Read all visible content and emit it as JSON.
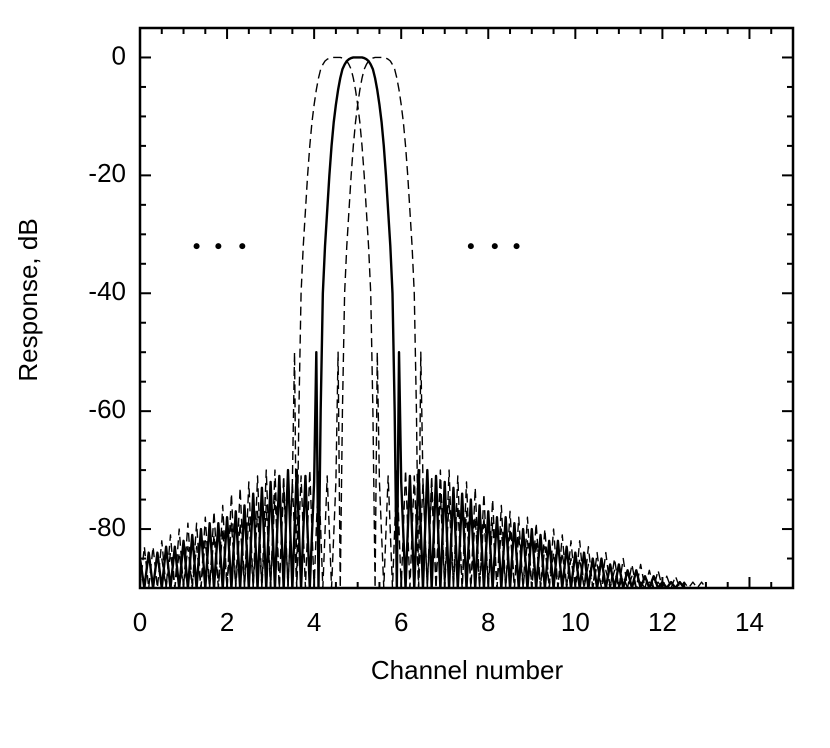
{
  "chart_data": {
    "type": "line",
    "x_label": "Channel number",
    "y_label": "Response, dB",
    "xlim": [
      0,
      15
    ],
    "ylim": [
      -90,
      5
    ],
    "xticks": [
      0,
      2,
      4,
      6,
      8,
      10,
      12,
      14
    ],
    "yticks": [
      0,
      -20,
      -40,
      -60,
      -80
    ],
    "xminorticks": [
      0.5,
      1,
      1.5,
      2.5,
      3,
      3.5,
      4.5,
      5,
      5.5,
      6.5,
      7,
      7.5,
      8.5,
      9,
      9.5,
      10.5,
      11,
      11.5,
      12.5,
      13,
      13.5,
      14.5
    ],
    "yminorticks": [
      5,
      -5,
      -10,
      -15,
      -25,
      -30,
      -35,
      -45,
      -50,
      -55,
      -65,
      -70,
      -75,
      -85
    ],
    "dots": {
      "x": [
        1.3,
        1.8,
        2.35,
        7.6,
        8.15,
        8.65
      ],
      "y": [
        -32,
        -32,
        -32,
        -32,
        -32,
        -32
      ]
    },
    "series": [
      {
        "color": "#000000",
        "style": "solid",
        "x": [
          0,
          0.1,
          0.2,
          0.3,
          0.4,
          0.5,
          0.6,
          0.7,
          0.8,
          0.9,
          1,
          1.1,
          1.2,
          1.3,
          1.4,
          1.5,
          1.6,
          1.7,
          1.8,
          1.9,
          2,
          2.1,
          2.2,
          2.3,
          2.4,
          2.5,
          2.6,
          2.7,
          2.8,
          2.9,
          3,
          3.1,
          3.2,
          3.3,
          3.4,
          3.5,
          3.6,
          3.7,
          3.8,
          3.9,
          4,
          4.05,
          4.1,
          4.15,
          4.2,
          4.25,
          4.3,
          4.35,
          4.4,
          4.45,
          4.5,
          4.55,
          4.6,
          4.65,
          4.7,
          4.75,
          4.8,
          4.85,
          4.9,
          4.95,
          5,
          5.05,
          5.1,
          5.15,
          5.2,
          5.25,
          5.3,
          5.35,
          5.4,
          5.45,
          5.5,
          5.55,
          5.6,
          5.65,
          5.7,
          5.75,
          5.8,
          5.85,
          5.9,
          5.95,
          6,
          6.1,
          6.2,
          6.3,
          6.4,
          6.5,
          6.6,
          6.7,
          6.8,
          6.9,
          7,
          7.1,
          7.2,
          7.3,
          7.4,
          7.5,
          7.6,
          7.7,
          7.8,
          7.9,
          8,
          8.1,
          8.2,
          8.3,
          8.4,
          8.5,
          8.6,
          8.7,
          8.8,
          8.9,
          9,
          9.1,
          9.2,
          9.3,
          9.4,
          9.5,
          9.6,
          9.7,
          9.8,
          9.9,
          10,
          10.1,
          10.2,
          10.3,
          10.4,
          10.5,
          10.6,
          10.7,
          10.8,
          10.9,
          11,
          11.1,
          11.2,
          11.3,
          11.4,
          11.5,
          11.6,
          11.7,
          11.8,
          11.9,
          12,
          12.1,
          12.2,
          12.3,
          12.4,
          12.5,
          12.6
        ],
        "values": [
          -85,
          -90,
          -84,
          -90,
          -84,
          -90,
          -83,
          -90,
          -83,
          -90,
          -82,
          -90,
          -81,
          -90,
          -80,
          -90,
          -79,
          -90,
          -79,
          -90,
          -78,
          -90,
          -77,
          -90,
          -76,
          -90,
          -74,
          -90,
          -73,
          -90,
          -72,
          -90,
          -71,
          -90,
          -70,
          -90,
          -70,
          -90,
          -71,
          -90,
          -72,
          -50,
          -90,
          -60,
          -40,
          -32,
          -26,
          -20,
          -15,
          -11,
          -8,
          -5.5,
          -3.5,
          -2,
          -1.2,
          -0.6,
          -0.3,
          -0.1,
          0,
          0,
          0,
          0,
          0,
          -0.1,
          -0.3,
          -0.6,
          -1.2,
          -2,
          -3.5,
          -5.5,
          -8,
          -11,
          -15,
          -20,
          -26,
          -32,
          -40,
          -60,
          -90,
          -50,
          -72,
          -90,
          -71,
          -90,
          -70,
          -90,
          -70,
          -90,
          -71,
          -90,
          -72,
          -90,
          -73,
          -90,
          -74,
          -90,
          -75,
          -90,
          -76,
          -90,
          -77,
          -90,
          -78,
          -90,
          -78,
          -90,
          -79,
          -90,
          -80,
          -90,
          -80,
          -90,
          -81,
          -90,
          -82,
          -90,
          -82,
          -90,
          -83,
          -90,
          -84,
          -90,
          -84,
          -90,
          -85,
          -90,
          -85,
          -90,
          -86,
          -90,
          -86,
          -90,
          -87,
          -90,
          -87,
          -90,
          -88,
          -90,
          -88,
          -90,
          -89,
          -90,
          -89,
          -90,
          -89,
          -90,
          -90
        ]
      },
      {
        "color": "#000000",
        "style": "dashed",
        "x": [
          0,
          0.1,
          0.2,
          0.3,
          0.4,
          0.5,
          0.6,
          0.7,
          0.8,
          0.9,
          1,
          1.1,
          1.2,
          1.3,
          1.4,
          1.5,
          1.6,
          1.7,
          1.8,
          1.9,
          2,
          2.1,
          2.2,
          2.3,
          2.4,
          2.5,
          2.6,
          2.7,
          2.8,
          2.9,
          3,
          3.1,
          3.2,
          3.3,
          3.4,
          3.5,
          3.55,
          3.6,
          3.65,
          3.7,
          3.75,
          3.8,
          3.85,
          3.9,
          3.95,
          4,
          4.05,
          4.1,
          4.15,
          4.2,
          4.25,
          4.3,
          4.35,
          4.4,
          4.45,
          4.5,
          4.55,
          4.6,
          4.65,
          4.7,
          4.75,
          4.8,
          4.85,
          4.9,
          4.95,
          5,
          5.05,
          5.1,
          5.15,
          5.2,
          5.25,
          5.3,
          5.35,
          5.4,
          5.45,
          5.5,
          5.6,
          5.7,
          5.8,
          5.9,
          6,
          6.1,
          6.2,
          6.3,
          6.4,
          6.5,
          6.6,
          6.7,
          6.8,
          6.9,
          7,
          7.1,
          7.2,
          7.3,
          7.4,
          7.5,
          7.6,
          7.7,
          7.8,
          7.9,
          8,
          8.1,
          8.2,
          8.3,
          8.4,
          8.5,
          8.6,
          8.7,
          8.8,
          8.9,
          9,
          9.1,
          9.2,
          9.3,
          9.4,
          9.5,
          9.6,
          9.7,
          9.8,
          9.9,
          10,
          10.1,
          10.2,
          10.3,
          10.4,
          10.5,
          10.6,
          10.7,
          10.8,
          10.9,
          11,
          11.1,
          11.2,
          11.3,
          11.4,
          11.5,
          11.6,
          11.7,
          11.8,
          11.9,
          12,
          12.1
        ],
        "values": [
          -90,
          -83,
          -90,
          -83,
          -90,
          -82,
          -90,
          -81,
          -90,
          -80,
          -90,
          -79,
          -90,
          -79,
          -90,
          -78,
          -90,
          -77,
          -90,
          -76,
          -90,
          -74,
          -90,
          -73,
          -90,
          -72,
          -90,
          -71,
          -90,
          -70,
          -90,
          -70,
          -90,
          -71,
          -90,
          -72,
          -50,
          -90,
          -60,
          -40,
          -32,
          -26,
          -20,
          -15,
          -11,
          -8,
          -5.5,
          -3.5,
          -2,
          -1.2,
          -0.6,
          -0.3,
          -0.1,
          0,
          0,
          0,
          0,
          0,
          -0.1,
          -0.3,
          -0.6,
          -1.2,
          -2,
          -3.5,
          -5.5,
          -8,
          -11,
          -15,
          -20,
          -26,
          -32,
          -40,
          -60,
          -90,
          -50,
          -72,
          -90,
          -71,
          -90,
          -70,
          -90,
          -70,
          -90,
          -71,
          -90,
          -72,
          -90,
          -73,
          -90,
          -74,
          -90,
          -75,
          -90,
          -76,
          -90,
          -77,
          -90,
          -78,
          -90,
          -78,
          -90,
          -79,
          -90,
          -80,
          -90,
          -80,
          -90,
          -81,
          -90,
          -82,
          -90,
          -82,
          -90,
          -83,
          -90,
          -84,
          -90,
          -84,
          -90,
          -85,
          -90,
          -85,
          -90,
          -86,
          -90,
          -86,
          -90,
          -87,
          -90,
          -87,
          -90,
          -88,
          -90,
          -88,
          -90,
          -89,
          -90,
          -89,
          -90,
          -89,
          -90,
          -90
        ]
      },
      {
        "color": "#000000",
        "style": "dashed",
        "x": [
          0.5,
          0.6,
          0.7,
          0.8,
          0.9,
          1,
          1.1,
          1.2,
          1.3,
          1.4,
          1.5,
          1.6,
          1.7,
          1.8,
          1.9,
          2,
          2.1,
          2.2,
          2.3,
          2.4,
          2.5,
          2.6,
          2.7,
          2.8,
          2.9,
          3,
          3.1,
          3.2,
          3.3,
          3.4,
          3.5,
          3.6,
          3.7,
          3.8,
          3.9,
          4,
          4.1,
          4.2,
          4.3,
          4.4,
          4.5,
          4.55,
          4.6,
          4.65,
          4.7,
          4.75,
          4.8,
          4.85,
          4.9,
          4.95,
          5,
          5.05,
          5.1,
          5.15,
          5.2,
          5.25,
          5.3,
          5.35,
          5.4,
          5.45,
          5.5,
          5.55,
          5.6,
          5.65,
          5.7,
          5.75,
          5.8,
          5.85,
          5.9,
          5.95,
          6,
          6.05,
          6.1,
          6.15,
          6.2,
          6.25,
          6.3,
          6.35,
          6.4,
          6.45,
          6.5,
          6.6,
          6.7,
          6.8,
          6.9,
          7,
          7.1,
          7.2,
          7.3,
          7.4,
          7.5,
          7.6,
          7.7,
          7.8,
          7.9,
          8,
          8.1,
          8.2,
          8.3,
          8.4,
          8.5,
          8.6,
          8.7,
          8.8,
          8.9,
          9,
          9.1,
          9.2,
          9.3,
          9.4,
          9.5,
          9.6,
          9.7,
          9.8,
          9.9,
          10,
          10.1,
          10.2,
          10.3,
          10.4,
          10.5,
          10.6,
          10.7,
          10.8,
          10.9,
          11,
          11.1,
          11.2,
          11.3,
          11.4,
          11.5,
          11.6,
          11.7,
          11.8,
          11.9,
          12,
          12.1,
          12.2,
          12.3,
          12.4,
          12.5,
          12.6,
          12.7,
          12.8,
          12.9,
          13,
          13.1
        ],
        "values": [
          -85,
          -90,
          -84,
          -90,
          -84,
          -90,
          -83,
          -90,
          -83,
          -90,
          -82,
          -90,
          -81,
          -90,
          -80,
          -90,
          -79,
          -90,
          -79,
          -90,
          -78,
          -90,
          -77,
          -90,
          -76,
          -90,
          -74,
          -90,
          -73,
          -90,
          -72,
          -90,
          -71,
          -90,
          -70,
          -90,
          -70,
          -90,
          -71,
          -90,
          -72,
          -50,
          -90,
          -60,
          -40,
          -32,
          -26,
          -20,
          -15,
          -11,
          -8,
          -5.5,
          -3.5,
          -2,
          -1.2,
          -0.6,
          -0.3,
          -0.1,
          0,
          0,
          0,
          0,
          0,
          -0.1,
          -0.3,
          -0.6,
          -1.2,
          -2,
          -3.5,
          -5.5,
          -8,
          -11,
          -15,
          -20,
          -26,
          -32,
          -40,
          -60,
          -90,
          -50,
          -72,
          -90,
          -71,
          -90,
          -70,
          -90,
          -70,
          -90,
          -71,
          -90,
          -72,
          -90,
          -73,
          -90,
          -74,
          -90,
          -75,
          -90,
          -76,
          -90,
          -77,
          -90,
          -78,
          -90,
          -78,
          -90,
          -79,
          -90,
          -80,
          -90,
          -80,
          -90,
          -81,
          -90,
          -82,
          -90,
          -82,
          -90,
          -83,
          -90,
          -84,
          -90,
          -84,
          -90,
          -85,
          -90,
          -85,
          -90,
          -86,
          -90,
          -86,
          -90,
          -87,
          -90,
          -87,
          -90,
          -88,
          -90,
          -88,
          -90,
          -89,
          -90,
          -89,
          -90,
          -89,
          -90,
          -90
        ]
      }
    ]
  }
}
